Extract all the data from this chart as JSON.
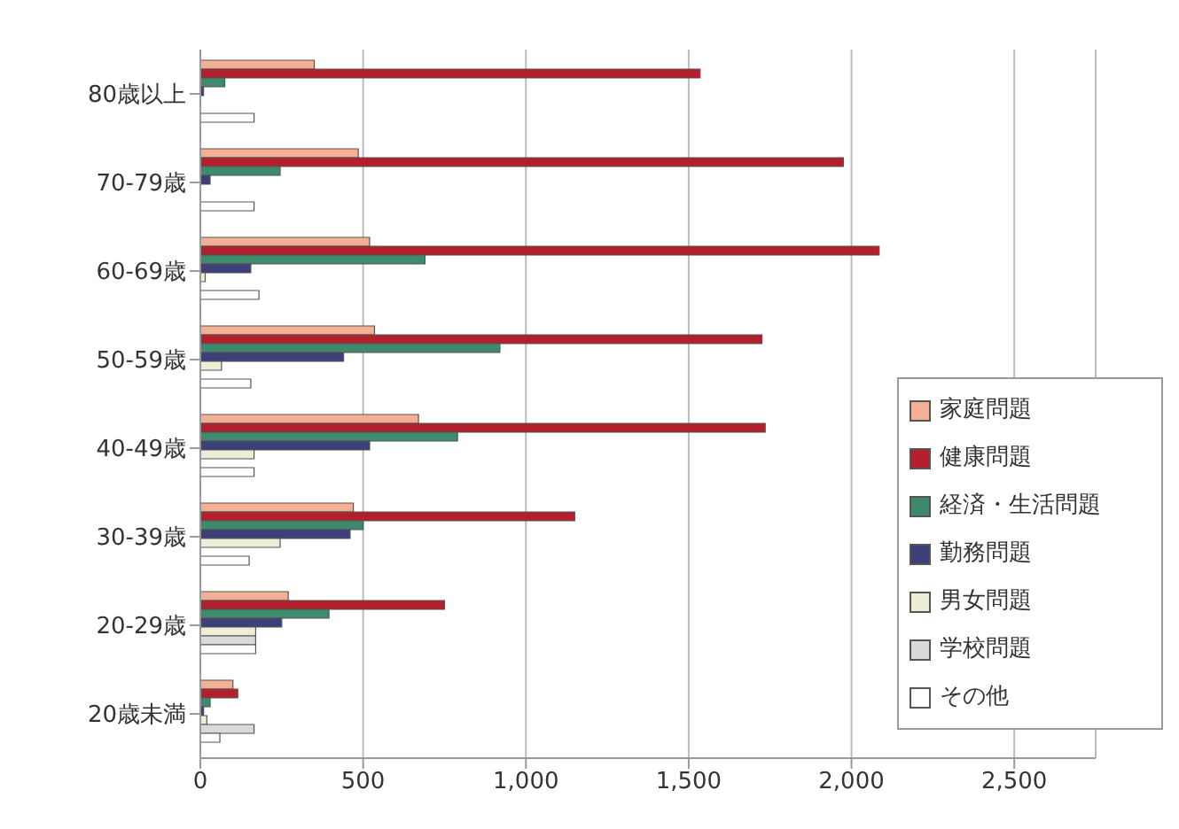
{
  "chart_data": {
    "type": "bar",
    "orientation": "horizontal",
    "categories": [
      "80歳以上",
      "70-79歳",
      "60-69歳",
      "50-59歳",
      "40-49歳",
      "30-39歳",
      "20-29歳",
      "20歳未満"
    ],
    "series": [
      {
        "name": "家庭問題",
        "color": "#f4b095",
        "values": [
          350,
          485,
          520,
          535,
          670,
          470,
          270,
          100
        ]
      },
      {
        "name": "健康問題",
        "color": "#b3202c",
        "values": [
          1535,
          1975,
          2085,
          1725,
          1735,
          1150,
          750,
          115
        ]
      },
      {
        "name": "経済・生活問題",
        "color": "#3f8a6c",
        "values": [
          75,
          245,
          690,
          920,
          790,
          500,
          395,
          30
        ]
      },
      {
        "name": "勤務問題",
        "color": "#3d3f78",
        "values": [
          10,
          30,
          155,
          440,
          520,
          460,
          250,
          10
        ]
      },
      {
        "name": "男女問題",
        "color": "#eeeed6",
        "values": [
          null,
          null,
          15,
          65,
          165,
          245,
          170,
          20
        ]
      },
      {
        "name": "学校問題",
        "color": "#d9d9d9",
        "values": [
          null,
          null,
          null,
          null,
          null,
          null,
          170,
          165
        ]
      },
      {
        "name": "その他",
        "color": "#ffffff",
        "values": [
          165,
          165,
          180,
          155,
          165,
          150,
          170,
          60
        ]
      }
    ],
    "xlim": [
      0,
      2750
    ],
    "xticks": [
      0,
      {
        "value": 500,
        "label": "500"
      },
      {
        "value": 1000,
        "label": "1,000"
      },
      {
        "value": 1500,
        "label": "1,500"
      },
      {
        "value": 2000,
        "label": "2,000"
      },
      {
        "value": 2500,
        "label": "2,500"
      }
    ],
    "grid": "x",
    "legend": "right"
  }
}
